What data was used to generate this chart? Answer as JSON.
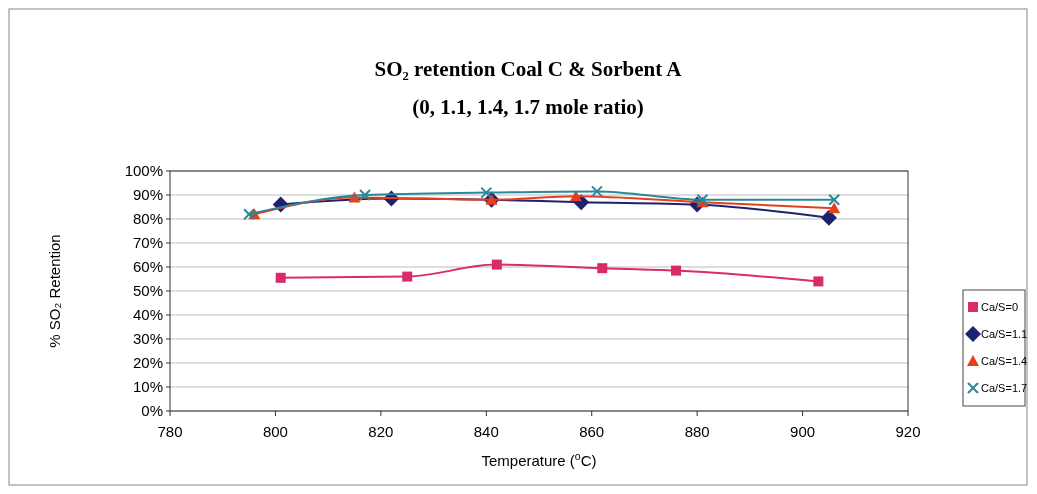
{
  "chart_data": {
    "type": "line",
    "title": "SO₂ retention Coal C & Sorbent A",
    "subtitle": "(0, 1.1, 1.4, 1.7 mole ratio)",
    "xlabel": "Temperature ($^{o}$C)",
    "ylabel": "% SO₂ Retention",
    "xlim": [
      780,
      920
    ],
    "xticks": [
      780,
      800,
      820,
      840,
      860,
      880,
      900,
      920
    ],
    "ylim": [
      0,
      100
    ],
    "yticks": [
      {
        "value": 0,
        "label": "0%"
      },
      {
        "value": 10,
        "label": "10%"
      },
      {
        "value": 20,
        "label": "20%"
      },
      {
        "value": 30,
        "label": "30%"
      },
      {
        "value": 40,
        "label": "40%"
      },
      {
        "value": 50,
        "label": "50%"
      },
      {
        "value": 60,
        "label": "60%"
      },
      {
        "value": 70,
        "label": "70%"
      },
      {
        "value": 80,
        "label": "80%"
      },
      {
        "value": 90,
        "label": "90%"
      },
      {
        "value": 100,
        "label": "100%"
      }
    ],
    "grid": "y",
    "legend": "right",
    "series": [
      {
        "name": "Ca/S=0",
        "color": "#d92a6c",
        "marker": "square",
        "x": [
          801,
          825,
          842,
          862,
          876,
          903
        ],
        "values": [
          55.5,
          56,
          61,
          59.5,
          58.5,
          54
        ]
      },
      {
        "name": "Ca/S=1.1",
        "color": "#1c2270",
        "marker": "diamond",
        "x": [
          801,
          822,
          841,
          858,
          880,
          905
        ],
        "values": [
          86,
          88.5,
          88,
          87,
          86,
          80.5
        ]
      },
      {
        "name": "Ca/S=1.4",
        "color": "#e63f1c",
        "marker": "triangle",
        "x": [
          796,
          815,
          841,
          857,
          881,
          906
        ],
        "values": [
          82,
          89,
          88,
          89.5,
          87,
          84.5
        ]
      },
      {
        "name": "Ca/S=1.7",
        "color": "#2a8898",
        "marker": "cross",
        "x": [
          795,
          817,
          840,
          861,
          881,
          906
        ],
        "values": [
          82,
          90,
          91,
          91.5,
          88,
          88
        ]
      }
    ]
  }
}
